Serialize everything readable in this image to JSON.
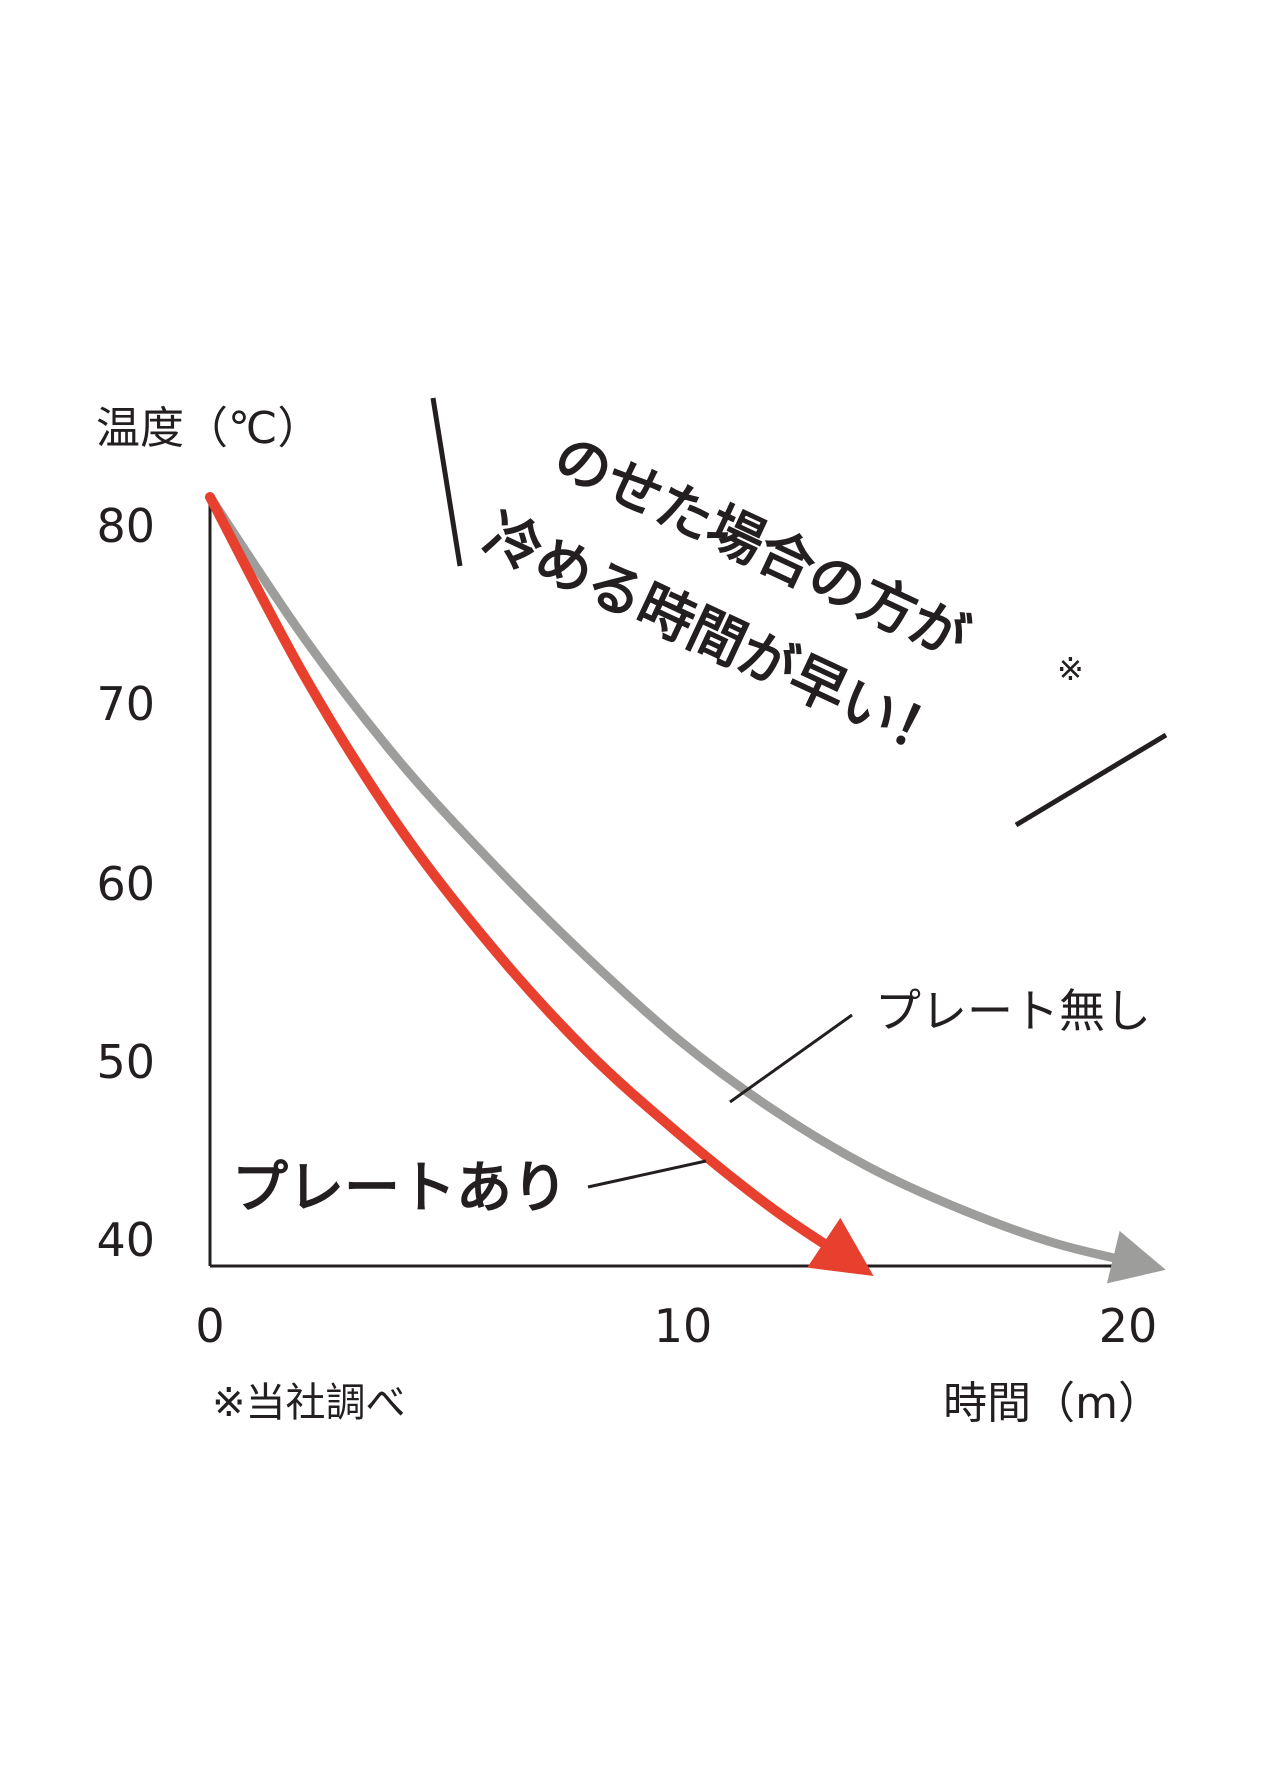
{
  "chart_data": {
    "type": "line",
    "ylabel": "温度（℃）",
    "xlabel": "時間（m）",
    "y_ticks": [
      "80",
      "70",
      "60",
      "50",
      "40"
    ],
    "x_ticks": [
      "0",
      "10",
      "20"
    ],
    "ylim": [
      40,
      81
    ],
    "xlim": [
      0,
      20
    ],
    "grid": false,
    "series": [
      {
        "name": "プレート無し",
        "color": "#9d9d9c",
        "x": [
          0,
          2,
          4,
          6,
          8,
          10,
          12,
          14,
          16,
          18,
          20
        ],
        "y": [
          81,
          73.5,
          67,
          61.5,
          56.5,
          52,
          48.3,
          45.3,
          43,
          41.2,
          40
        ]
      },
      {
        "name": "プレートあり",
        "color": "#e8402f",
        "x": [
          0,
          2,
          4,
          6,
          8,
          10,
          12,
          13.8
        ],
        "y": [
          81,
          71.5,
          63.5,
          57,
          51.5,
          47,
          43,
          40
        ]
      }
    ],
    "headline_line1": "のせた場合の方が",
    "headline_line2": "冷める時間が早い！",
    "headline_mark": "※",
    "note": "※当社調べ"
  }
}
